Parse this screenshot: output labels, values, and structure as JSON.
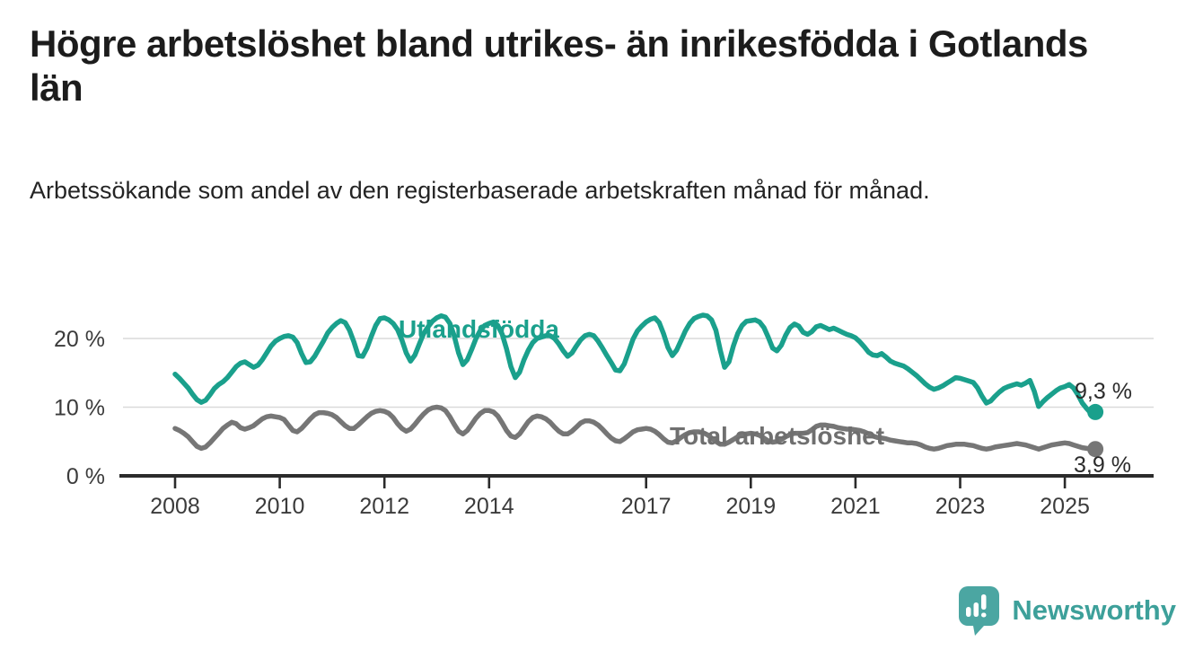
{
  "header": {
    "title": "Högre arbetslöshet bland utrikes- än inrikesfödda i Gotlands län",
    "subtitle": "Arbetssökande som andel av den registerbaserade arbetskraften månad för månad."
  },
  "footer": {
    "brand": "Newsworthy",
    "logo_icon": "bar-chart-speech-bubble"
  },
  "colors": {
    "series_foreign": "#1aa08c",
    "series_total": "#767676",
    "axis": "#2b2b2b",
    "gridline": "#dadada",
    "tick_label": "#3b3b3b",
    "value_label": "#2b2b2b",
    "brand_teal": "#3da09a"
  },
  "chart_data": {
    "type": "line",
    "title": "Högre arbetslöshet bland utrikes- än inrikesfödda i Gotlands län",
    "subtitle": "Arbetssökande som andel av den registerbaserade arbetskraften månad för månad.",
    "x_start": "2008-01",
    "x_end": "2025-08",
    "frequency": "monthly",
    "ylim": [
      0,
      24
    ],
    "grid": "horizontal",
    "legend_position": "inline-labels",
    "y_ticks": [
      {
        "value": 0,
        "label": "0 %"
      },
      {
        "value": 10,
        "label": "10 %"
      },
      {
        "value": 20,
        "label": "20 %"
      }
    ],
    "x_ticks": [
      "2008",
      "2010",
      "2012",
      "2014",
      "2017",
      "2019",
      "2021",
      "2023",
      "2025"
    ],
    "x_tick_years": [
      2008,
      2010,
      2012,
      2014,
      2017,
      2019,
      2021,
      2023,
      2025
    ],
    "series": [
      {
        "name": "Utlandsfödda",
        "color": "#1aa08c",
        "end_label": "9,3 %",
        "end_value": 9.3,
        "values": [
          14.8,
          14.2,
          13.5,
          12.8,
          11.9,
          11.1,
          10.7,
          11.0,
          11.8,
          12.7,
          13.3,
          13.7,
          14.3,
          15.1,
          15.9,
          16.4,
          16.6,
          16.2,
          15.8,
          16.1,
          16.9,
          17.9,
          18.9,
          19.6,
          20.0,
          20.3,
          20.4,
          20.2,
          19.4,
          17.8,
          16.5,
          16.6,
          17.4,
          18.5,
          19.6,
          20.8,
          21.6,
          22.2,
          22.6,
          22.3,
          21.2,
          19.5,
          17.5,
          17.4,
          18.6,
          20.3,
          21.9,
          22.9,
          23.0,
          22.7,
          22.2,
          21.3,
          19.8,
          17.9,
          16.7,
          17.6,
          19.2,
          20.7,
          21.7,
          22.5,
          23.0,
          23.3,
          23.1,
          22.2,
          20.4,
          17.9,
          16.2,
          16.9,
          18.4,
          20.0,
          21.2,
          21.9,
          22.2,
          22.4,
          21.9,
          20.6,
          18.5,
          15.9,
          14.3,
          15.1,
          16.9,
          18.3,
          19.4,
          20.0,
          20.2,
          20.4,
          20.4,
          20.0,
          19.2,
          18.2,
          17.4,
          17.9,
          18.9,
          19.8,
          20.4,
          20.6,
          20.4,
          19.6,
          18.6,
          17.5,
          16.5,
          15.4,
          15.3,
          16.3,
          18.1,
          19.9,
          21.1,
          21.8,
          22.4,
          22.8,
          23.0,
          22.3,
          20.7,
          18.7,
          17.5,
          18.3,
          19.7,
          21.1,
          22.2,
          22.9,
          23.2,
          23.4,
          23.3,
          22.7,
          21.2,
          18.3,
          15.8,
          16.6,
          18.9,
          20.7,
          21.9,
          22.5,
          22.6,
          22.7,
          22.4,
          21.6,
          20.2,
          18.6,
          18.2,
          19.0,
          20.5,
          21.6,
          22.1,
          21.8,
          20.9,
          20.6,
          21.0,
          21.7,
          21.9,
          21.6,
          21.3,
          21.5,
          21.2,
          20.9,
          20.6,
          20.4,
          20.1,
          19.5,
          18.8,
          18.0,
          17.6,
          17.5,
          17.8,
          17.3,
          16.7,
          16.4,
          16.2,
          16.0,
          15.6,
          15.1,
          14.6,
          14.0,
          13.4,
          12.9,
          12.6,
          12.8,
          13.1,
          13.5,
          13.9,
          14.3,
          14.2,
          14.0,
          13.8,
          13.6,
          12.8,
          11.6,
          10.6,
          10.9,
          11.6,
          12.2,
          12.7,
          13.0,
          13.2,
          13.4,
          13.2,
          13.5,
          13.9,
          12.3,
          10.1,
          10.8,
          11.4,
          11.9,
          12.4,
          12.8,
          13.0,
          13.3,
          12.8,
          11.8,
          10.6,
          9.8,
          9.1,
          9.3
        ]
      },
      {
        "name": "Total arbetslöshet",
        "color": "#767676",
        "end_label": "3,9 %",
        "end_value": 3.9,
        "values": [
          6.9,
          6.6,
          6.2,
          5.7,
          5.0,
          4.3,
          4.0,
          4.2,
          4.8,
          5.5,
          6.2,
          6.9,
          7.4,
          7.8,
          7.6,
          7.0,
          6.8,
          7.0,
          7.3,
          7.8,
          8.3,
          8.6,
          8.7,
          8.6,
          8.5,
          8.2,
          7.4,
          6.6,
          6.4,
          6.9,
          7.6,
          8.3,
          8.9,
          9.2,
          9.2,
          9.1,
          8.9,
          8.5,
          7.9,
          7.3,
          6.9,
          6.9,
          7.4,
          8.0,
          8.6,
          9.1,
          9.4,
          9.5,
          9.4,
          9.1,
          8.5,
          7.6,
          6.9,
          6.5,
          6.8,
          7.5,
          8.3,
          9.0,
          9.6,
          9.9,
          10.0,
          9.9,
          9.5,
          8.6,
          7.5,
          6.5,
          6.1,
          6.6,
          7.5,
          8.4,
          9.1,
          9.5,
          9.5,
          9.3,
          8.7,
          7.7,
          6.6,
          5.8,
          5.6,
          6.1,
          7.0,
          7.9,
          8.5,
          8.7,
          8.6,
          8.3,
          7.8,
          7.1,
          6.5,
          6.1,
          6.1,
          6.5,
          7.1,
          7.7,
          8.0,
          8.0,
          7.8,
          7.4,
          6.8,
          6.1,
          5.5,
          5.1,
          5.0,
          5.4,
          5.9,
          6.4,
          6.7,
          6.8,
          6.9,
          6.8,
          6.5,
          6.0,
          5.4,
          4.9,
          4.8,
          5.1,
          5.6,
          6.0,
          6.3,
          6.4,
          6.4,
          6.3,
          6.0,
          5.5,
          5.0,
          4.6,
          4.6,
          4.9,
          5.3,
          5.7,
          6.0,
          6.1,
          6.2,
          6.1,
          5.9,
          5.5,
          5.1,
          4.9,
          5.0,
          5.3,
          5.7,
          6.0,
          6.2,
          6.2,
          6.2,
          6.3,
          6.7,
          7.2,
          7.4,
          7.4,
          7.3,
          7.2,
          7.0,
          6.9,
          6.8,
          6.8,
          6.7,
          6.6,
          6.4,
          6.1,
          5.8,
          5.6,
          5.5,
          5.4,
          5.2,
          5.1,
          5.0,
          4.9,
          4.8,
          4.8,
          4.7,
          4.5,
          4.2,
          4.0,
          3.9,
          4.0,
          4.2,
          4.4,
          4.5,
          4.6,
          4.6,
          4.6,
          4.5,
          4.4,
          4.2,
          4.0,
          3.9,
          4.0,
          4.2,
          4.3,
          4.4,
          4.5,
          4.6,
          4.7,
          4.6,
          4.5,
          4.3,
          4.1,
          3.9,
          4.1,
          4.3,
          4.5,
          4.6,
          4.7,
          4.8,
          4.7,
          4.5,
          4.3,
          4.1,
          4.0,
          3.9,
          3.9
        ]
      }
    ]
  }
}
